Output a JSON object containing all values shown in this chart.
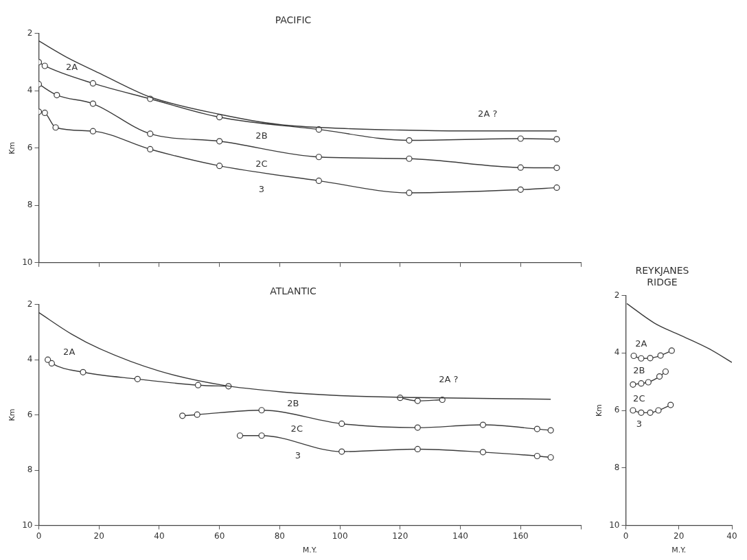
{
  "chart_data": [
    {
      "type": "line",
      "title": "PACIFIC",
      "ylabel": "Km",
      "xlim": [
        0,
        180
      ],
      "ylim": [
        10,
        2
      ],
      "xticks": [
        0,
        20,
        40,
        60,
        80,
        100,
        120,
        140,
        160,
        {
          "value": 180,
          "label": null
        }
      ],
      "yticks": [
        2,
        4,
        6,
        8,
        10
      ],
      "tick_labels": "y",
      "marker": "circle",
      "line_style": "solid",
      "series": [
        {
          "color": "#3a3a3a",
          "marker": "none",
          "x": [
            0,
            10,
            20,
            30,
            37,
            60,
            80,
            100,
            120,
            140,
            172
          ],
          "values": [
            2.26,
            2.87,
            3.38,
            3.9,
            4.22,
            4.82,
            5.18,
            5.31,
            5.37,
            5.4,
            5.4
          ]
        },
        {
          "color": "#3a3a3a",
          "x": [
            0,
            2,
            18,
            37,
            60,
            93,
            123,
            160,
            172
          ],
          "values": [
            3.0,
            3.13,
            3.74,
            4.28,
            4.92,
            5.35,
            5.73,
            5.67,
            5.69
          ]
        },
        {
          "color": "#3a3a3a",
          "x": [
            0,
            6,
            18,
            37,
            60,
            93,
            123,
            160,
            172
          ],
          "values": [
            3.77,
            4.15,
            4.45,
            5.5,
            5.76,
            6.31,
            6.37,
            6.68,
            6.69
          ]
        },
        {
          "color": "#3a3a3a",
          "x": [
            0,
            2,
            5.6,
            18,
            37,
            60,
            93,
            123,
            160,
            172
          ],
          "values": [
            4.73,
            4.77,
            5.28,
            5.41,
            6.04,
            6.62,
            7.14,
            7.56,
            7.45,
            7.38
          ]
        }
      ],
      "annotations": [
        "2A",
        "2A ?",
        "2B",
        "2C",
        "3"
      ]
    },
    {
      "type": "line",
      "title": "ATLANTIC",
      "ylabel": "Km",
      "xlabel": "M.Y.",
      "xlim": [
        0,
        180
      ],
      "ylim": [
        10,
        2
      ],
      "xticks": [
        0,
        20,
        40,
        60,
        80,
        100,
        120,
        140,
        160,
        {
          "value": 180,
          "label": null
        }
      ],
      "yticks": [
        2,
        4,
        6,
        8,
        10
      ],
      "marker": "circle",
      "line_style": "solid",
      "series": [
        {
          "color": "#3a3a3a",
          "marker": "none",
          "x": [
            0,
            11,
            20,
            40,
            61,
            81,
            100,
            125,
            170
          ],
          "values": [
            2.29,
            3.08,
            3.59,
            4.41,
            4.92,
            5.17,
            5.3,
            5.37,
            5.43
          ]
        },
        {
          "color": "#3a3a3a",
          "x": [
            3,
            4.3,
            14.7,
            32.8,
            52.9,
            63
          ],
          "values": [
            4.0,
            4.13,
            4.45,
            4.7,
            4.92,
            4.96
          ]
        },
        {
          "color": "#3a3a3a",
          "x": [
            120,
            125.8,
            134
          ],
          "values": [
            5.38,
            5.49,
            5.45
          ]
        },
        {
          "color": "#3a3a3a",
          "x": [
            47.7,
            52.6,
            74,
            100.6,
            125.8,
            147.5,
            165.5,
            170
          ],
          "values": [
            6.03,
            5.99,
            5.83,
            6.32,
            6.46,
            6.36,
            6.51,
            6.56
          ]
        },
        {
          "color": "#3a3a3a",
          "x": [
            66.8,
            74,
            100.6,
            125.8,
            147.5,
            165.5,
            170
          ],
          "values": [
            6.75,
            6.75,
            7.33,
            7.24,
            7.35,
            7.49,
            7.54
          ]
        }
      ],
      "annotations": [
        "2A",
        "2A ?",
        "2B",
        "2C",
        "3"
      ]
    },
    {
      "type": "line",
      "title": "REYKJANES RIDGE",
      "ylabel": "Km",
      "xlabel": "M.Y.",
      "xlim": [
        0,
        40
      ],
      "ylim": [
        10,
        2
      ],
      "xticks": [
        0,
        20,
        40
      ],
      "yticks": [
        2,
        4,
        6,
        8,
        10
      ],
      "marker": "circle",
      "line_style": "solid",
      "series": [
        {
          "color": "#3a3a3a",
          "marker": "none",
          "x": [
            0.4,
            10.8,
            20.2,
            31.5,
            40
          ],
          "values": [
            2.28,
            2.96,
            3.37,
            3.86,
            4.33
          ]
        },
        {
          "color": "#3a3a3a",
          "x": [
            3,
            5.8,
            9.2,
            13.1,
            17.3
          ],
          "values": [
            4.1,
            4.19,
            4.18,
            4.09,
            3.92
          ]
        },
        {
          "color": "#3a3a3a",
          "x": [
            2.7,
            5.8,
            8.5,
            12.7,
            15
          ],
          "values": [
            5.1,
            5.06,
            5.02,
            4.82,
            4.65
          ]
        },
        {
          "color": "#3a3a3a",
          "x": [
            2.7,
            5.8,
            9.2,
            12.3,
            16.9
          ],
          "values": [
            6.0,
            6.08,
            6.08,
            6.0,
            5.81
          ]
        }
      ],
      "annotations": [
        "2A",
        "2B",
        "2C",
        "3"
      ]
    }
  ]
}
